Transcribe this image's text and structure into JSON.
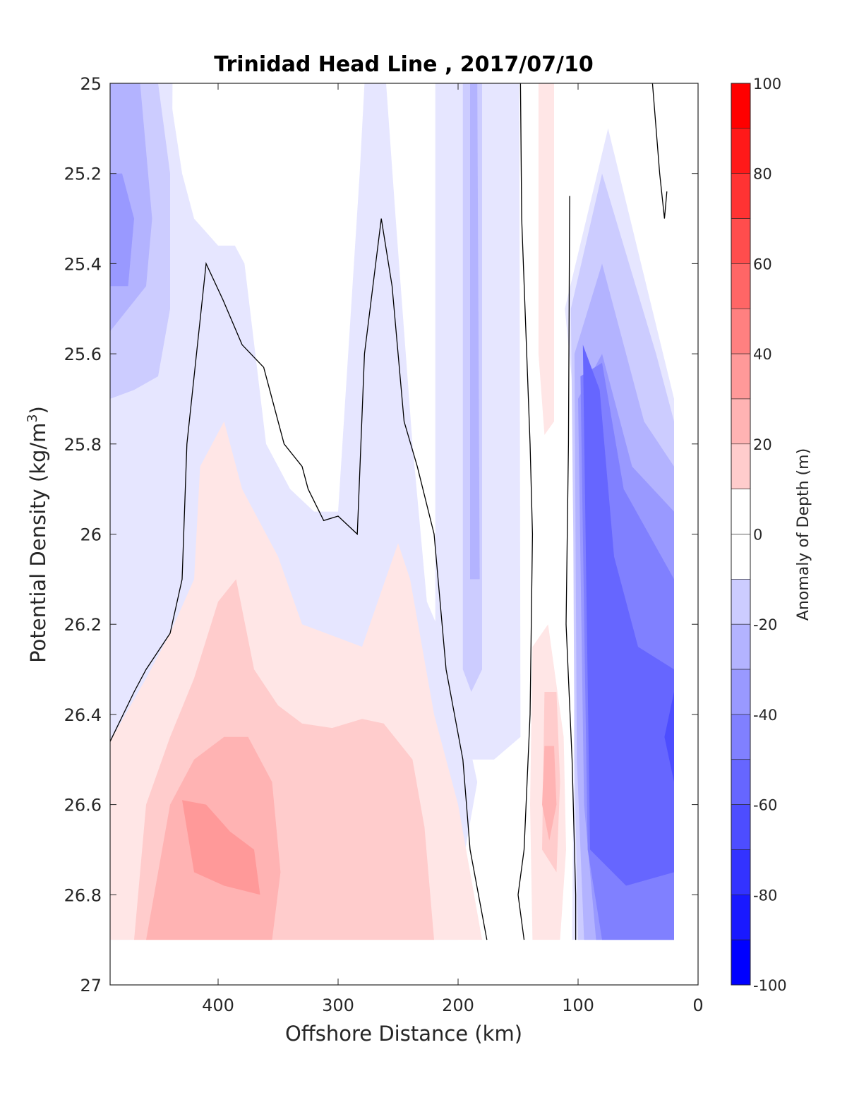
{
  "chart_data": {
    "type": "contour",
    "title": "Trinidad Head Line , 2017/07/10",
    "xlabel": "Offshore Distance (km)",
    "ylabel": "Potential Density (kg/m",
    "ylabel_sup": "3",
    "ylabel_close": ")",
    "xlim": [
      490,
      0
    ],
    "ylim": [
      25,
      27
    ],
    "x_ticks": [
      400,
      300,
      200,
      100,
      0
    ],
    "x_tick_labels": [
      "400",
      "300",
      "200",
      "100",
      "0"
    ],
    "y_ticks": [
      25,
      25.2,
      25.4,
      25.6,
      25.8,
      26,
      26.2,
      26.4,
      26.6,
      26.8,
      27
    ],
    "y_tick_labels": [
      "25",
      "25.2",
      "25.4",
      "25.6",
      "25.8",
      "26",
      "26.2",
      "26.4",
      "26.6",
      "26.8",
      "27"
    ],
    "y_reversed": true,
    "colorbar": {
      "label": "Anomaly of Depth (m)",
      "range": [
        -100,
        100
      ],
      "step": 10,
      "ticks": [
        100,
        80,
        60,
        40,
        20,
        0,
        -20,
        -40,
        -60,
        -80,
        -100
      ],
      "tick_labels": [
        "100",
        "80",
        "60",
        "40",
        "20",
        "0",
        "-20",
        "-40",
        "-60",
        "-80",
        "-100"
      ],
      "colormap": "blue-white-red"
    },
    "regions": [
      {
        "level": -10,
        "points": [
          [
            490,
            25.0
          ],
          [
            442,
            25.0
          ],
          [
            438,
            25.06
          ],
          [
            430,
            25.2
          ],
          [
            420,
            25.3
          ],
          [
            400,
            25.36
          ],
          [
            386,
            25.36
          ],
          [
            378,
            25.4
          ],
          [
            360,
            25.8
          ],
          [
            340,
            25.9
          ],
          [
            320,
            25.95
          ],
          [
            300,
            25.95
          ],
          [
            282,
            25.2
          ],
          [
            278,
            25.0
          ],
          [
            260,
            25.0
          ],
          [
            252,
            25.3
          ],
          [
            238,
            25.8
          ],
          [
            226,
            26.15
          ],
          [
            210,
            26.25
          ],
          [
            195,
            26.5
          ],
          [
            188,
            26.5
          ],
          [
            184,
            26.55
          ],
          [
            194,
            26.7
          ],
          [
            200,
            26.9
          ],
          [
            490,
            26.9
          ]
        ]
      },
      {
        "level": -10,
        "points": [
          [
            490,
            25.0
          ],
          [
            438,
            25.0
          ],
          [
            440,
            26.0
          ],
          [
            445,
            26.0
          ],
          [
            460,
            25.95
          ],
          [
            475,
            26.05
          ],
          [
            485,
            26.25
          ],
          [
            490,
            26.35
          ]
        ]
      },
      {
        "level": -10,
        "points": [
          [
            219,
            25.0
          ],
          [
            149,
            25.0
          ],
          [
            148,
            26.45
          ],
          [
            170,
            26.5
          ],
          [
            195,
            26.5
          ],
          [
            215,
            26.4
          ],
          [
            219,
            26.3
          ]
        ]
      },
      {
        "level": -10,
        "points": [
          [
            111,
            25.5
          ],
          [
            75,
            25.1
          ],
          [
            20,
            25.7
          ],
          [
            20,
            26.9
          ],
          [
            105,
            26.9
          ],
          [
            103,
            26.3
          ],
          [
            100,
            25.8
          ]
        ]
      },
      {
        "level": -20,
        "points": [
          [
            490,
            25.0
          ],
          [
            450,
            25.0
          ],
          [
            440,
            25.2
          ],
          [
            440,
            25.5
          ],
          [
            450,
            25.65
          ],
          [
            470,
            25.68
          ],
          [
            490,
            25.7
          ]
        ]
      },
      {
        "level": -20,
        "points": [
          [
            196,
            25.0
          ],
          [
            180,
            25.0
          ],
          [
            180,
            26.3
          ],
          [
            189,
            26.35
          ],
          [
            196,
            26.3
          ]
        ]
      },
      {
        "level": -20,
        "points": [
          [
            106,
            25.5
          ],
          [
            80,
            25.2
          ],
          [
            35,
            25.6
          ],
          [
            20,
            25.75
          ],
          [
            20,
            26.9
          ],
          [
            100,
            26.9
          ],
          [
            103,
            26.5
          ],
          [
            104,
            26.0
          ]
        ]
      },
      {
        "level": -30,
        "points": [
          [
            490,
            25.0
          ],
          [
            465,
            25.0
          ],
          [
            455,
            25.3
          ],
          [
            460,
            25.45
          ],
          [
            475,
            25.5
          ],
          [
            490,
            25.55
          ]
        ]
      },
      {
        "level": -30,
        "points": [
          [
            190,
            25.0
          ],
          [
            184,
            25.0
          ],
          [
            182,
            26.1
          ],
          [
            190,
            26.1
          ]
        ]
      },
      {
        "level": -30,
        "points": [
          [
            103,
            25.6
          ],
          [
            80,
            25.4
          ],
          [
            45,
            25.75
          ],
          [
            20,
            25.85
          ],
          [
            20,
            26.9
          ],
          [
            95,
            26.9
          ],
          [
            101,
            26.5
          ]
        ]
      },
      {
        "level": -40,
        "points": [
          [
            490,
            25.2
          ],
          [
            480,
            25.2
          ],
          [
            470,
            25.3
          ],
          [
            475,
            25.45
          ],
          [
            490,
            25.45
          ]
        ]
      },
      {
        "level": -40,
        "points": [
          [
            100,
            25.7
          ],
          [
            80,
            25.6
          ],
          [
            55,
            25.85
          ],
          [
            20,
            25.95
          ],
          [
            20,
            26.9
          ],
          [
            85,
            26.9
          ],
          [
            95,
            26.6
          ]
        ]
      },
      {
        "level": -50,
        "points": [
          [
            98,
            25.65
          ],
          [
            80,
            25.62
          ],
          [
            62,
            25.9
          ],
          [
            20,
            26.1
          ],
          [
            20,
            26.9
          ],
          [
            80,
            26.9
          ],
          [
            92,
            26.7
          ]
        ]
      },
      {
        "level": -60,
        "points": [
          [
            96,
            25.58
          ],
          [
            82,
            25.68
          ],
          [
            70,
            26.05
          ],
          [
            50,
            26.25
          ],
          [
            20,
            26.3
          ],
          [
            20,
            26.75
          ],
          [
            60,
            26.78
          ],
          [
            90,
            26.7
          ]
        ]
      },
      {
        "level": -70,
        "points": [
          [
            28,
            26.45
          ],
          [
            20,
            26.35
          ],
          [
            20,
            26.55
          ]
        ]
      },
      {
        "level": 10,
        "points": [
          [
            490,
            26.46
          ],
          [
            460,
            26.32
          ],
          [
            440,
            26.22
          ],
          [
            420,
            26.1
          ],
          [
            415,
            25.85
          ],
          [
            395,
            25.75
          ],
          [
            380,
            25.9
          ],
          [
            350,
            26.05
          ],
          [
            330,
            26.2
          ],
          [
            280,
            26.25
          ],
          [
            250,
            26.02
          ],
          [
            240,
            26.1
          ],
          [
            220,
            26.4
          ],
          [
            200,
            26.6
          ],
          [
            190,
            26.75
          ],
          [
            180,
            26.9
          ],
          [
            490,
            26.9
          ]
        ]
      },
      {
        "level": 10,
        "points": [
          [
            133,
            25.0
          ],
          [
            120,
            25.0
          ],
          [
            120,
            25.75
          ],
          [
            128,
            25.78
          ],
          [
            133,
            25.6
          ]
        ]
      },
      {
        "level": 10,
        "points": [
          [
            138,
            26.25
          ],
          [
            125,
            26.2
          ],
          [
            112,
            26.45
          ],
          [
            110,
            26.7
          ],
          [
            115,
            26.9
          ],
          [
            138,
            26.9
          ],
          [
            140,
            26.6
          ]
        ]
      },
      {
        "level": 20,
        "points": [
          [
            470,
            26.9
          ],
          [
            460,
            26.6
          ],
          [
            440,
            26.45
          ],
          [
            420,
            26.32
          ],
          [
            400,
            26.15
          ],
          [
            385,
            26.1
          ],
          [
            370,
            26.3
          ],
          [
            350,
            26.38
          ],
          [
            330,
            26.42
          ],
          [
            305,
            26.43
          ],
          [
            280,
            26.41
          ],
          [
            262,
            26.42
          ],
          [
            238,
            26.5
          ],
          [
            228,
            26.65
          ],
          [
            220,
            26.9
          ]
        ]
      },
      {
        "level": 20,
        "points": [
          [
            128,
            26.35
          ],
          [
            118,
            26.35
          ],
          [
            115,
            26.55
          ],
          [
            118,
            26.75
          ],
          [
            130,
            26.7
          ]
        ]
      },
      {
        "level": 30,
        "points": [
          [
            460,
            26.9
          ],
          [
            440,
            26.6
          ],
          [
            420,
            26.5
          ],
          [
            395,
            26.45
          ],
          [
            375,
            26.45
          ],
          [
            355,
            26.55
          ],
          [
            348,
            26.75
          ],
          [
            355,
            26.9
          ]
        ]
      },
      {
        "level": 30,
        "points": [
          [
            128,
            26.47
          ],
          [
            120,
            26.47
          ],
          [
            118,
            26.6
          ],
          [
            124,
            26.68
          ],
          [
            130,
            26.6
          ]
        ]
      },
      {
        "level": 40,
        "points": [
          [
            430,
            26.59
          ],
          [
            410,
            26.6
          ],
          [
            390,
            26.66
          ],
          [
            370,
            26.7
          ],
          [
            365,
            26.8
          ],
          [
            395,
            26.78
          ],
          [
            420,
            26.75
          ]
        ]
      }
    ],
    "contour_lines": [
      [
        [
          490,
          26.46
        ],
        [
          470,
          26.35
        ],
        [
          460,
          26.3
        ],
        [
          440,
          26.22
        ],
        [
          430,
          26.1
        ],
        [
          426,
          25.8
        ],
        [
          410,
          25.4
        ],
        [
          396,
          25.48
        ],
        [
          380,
          25.58
        ],
        [
          362,
          25.63
        ],
        [
          345,
          25.8
        ],
        [
          330,
          25.85
        ],
        [
          325,
          25.9
        ],
        [
          312,
          25.97
        ],
        [
          300,
          25.96
        ],
        [
          284,
          26.0
        ],
        [
          278,
          25.6
        ],
        [
          264,
          25.3
        ],
        [
          255,
          25.45
        ],
        [
          245,
          25.75
        ],
        [
          234,
          25.85
        ],
        [
          220,
          26.0
        ],
        [
          210,
          26.3
        ],
        [
          196,
          26.5
        ],
        [
          190,
          26.7
        ],
        [
          176,
          26.9
        ]
      ],
      [
        [
          148,
          25.0
        ],
        [
          147,
          25.3
        ],
        [
          140,
          25.8
        ],
        [
          138,
          26.0
        ],
        [
          140,
          26.4
        ],
        [
          145,
          26.7
        ],
        [
          150,
          26.8
        ],
        [
          145,
          26.9
        ]
      ],
      [
        [
          107,
          25.25
        ],
        [
          108,
          25.8
        ],
        [
          110,
          26.2
        ],
        [
          105,
          26.5
        ],
        [
          102,
          26.8
        ],
        [
          102,
          26.9
        ]
      ],
      [
        [
          38,
          25.0
        ],
        [
          32,
          25.2
        ],
        [
          28,
          25.3
        ],
        [
          26,
          25.24
        ]
      ]
    ]
  }
}
